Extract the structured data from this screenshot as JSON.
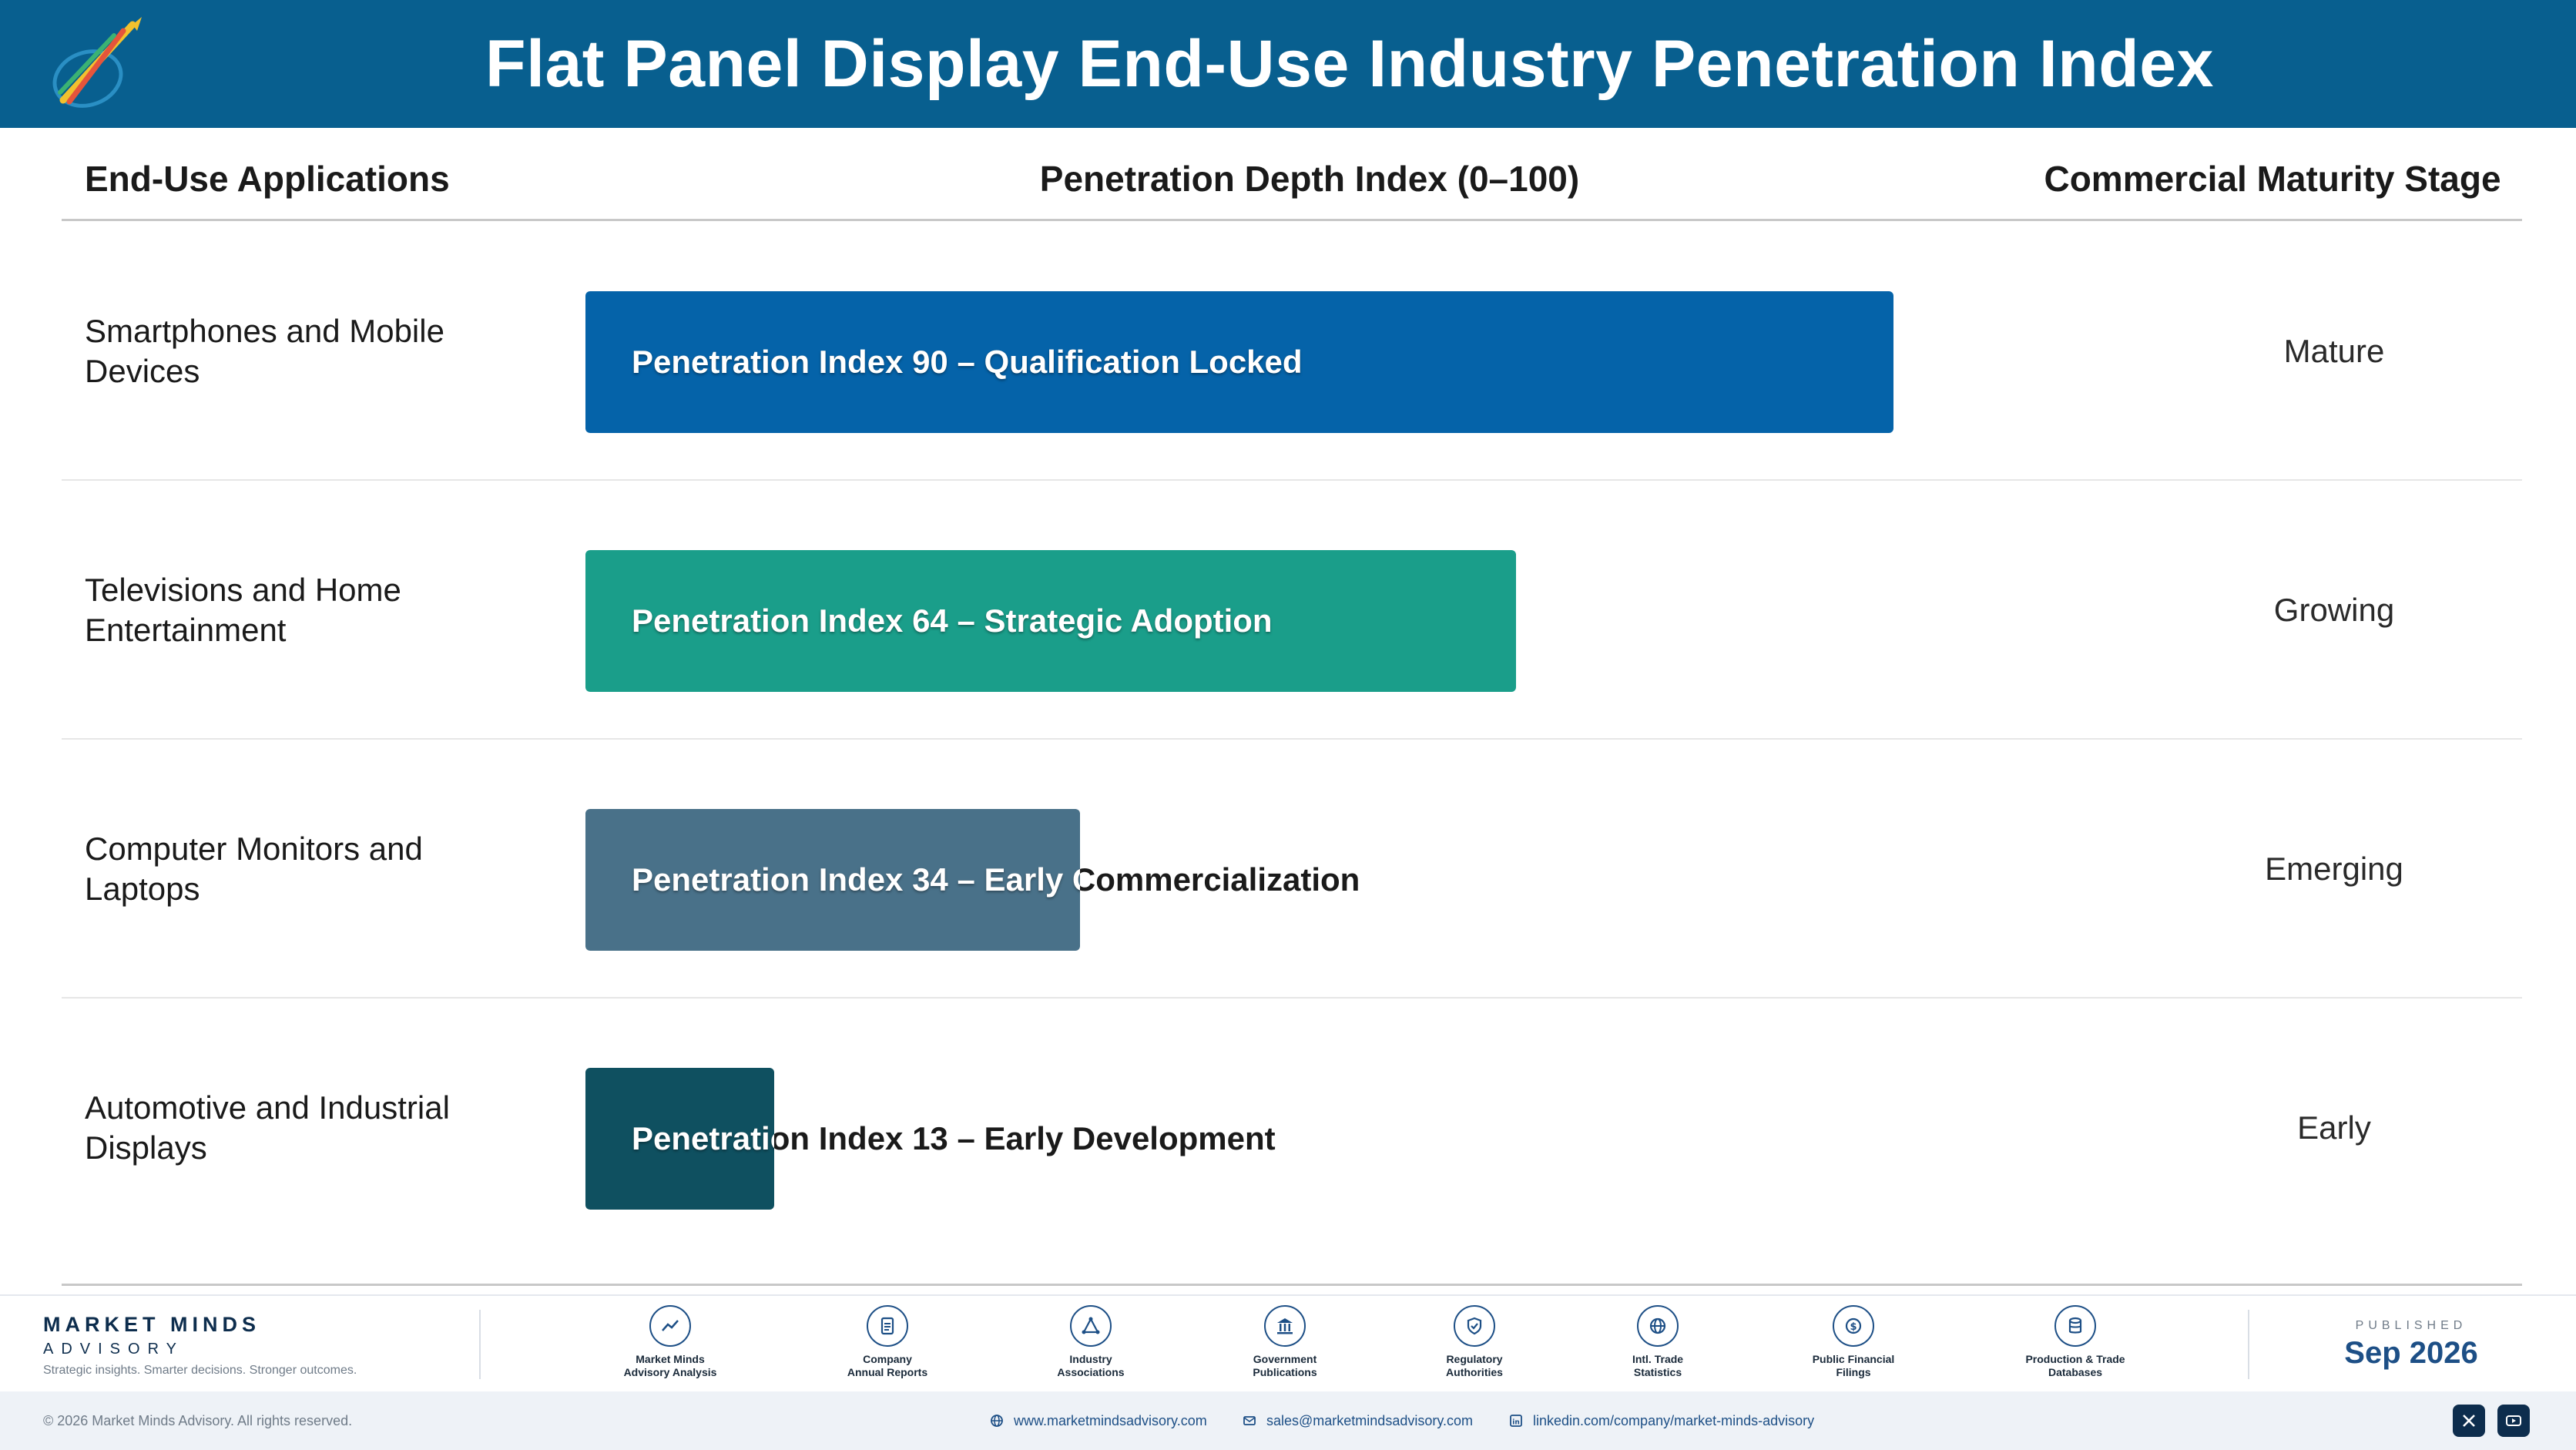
{
  "header": {
    "title": "Flat Panel Display End-Use Industry Penetration Index"
  },
  "columns": {
    "apps": "End-Use Applications",
    "index": "Penetration Depth Index (0–100)",
    "stage": "Commercial Maturity Stage"
  },
  "chart_data": {
    "type": "bar",
    "orientation": "horizontal",
    "xlim": [
      0,
      100
    ],
    "categories": [
      "Smartphones and Mobile Devices",
      "Televisions and Home Entertainment",
      "Computer Monitors and Laptops",
      "Automotive and Industrial Displays"
    ],
    "values": [
      90,
      64,
      34,
      13
    ],
    "bar_labels": [
      "Penetration Index 90 – Qualification Locked",
      "Penetration Index 64 – Strategic Adoption",
      "Penetration Index 34 – Early Commercialization",
      "Penetration Index 13 – Early Development"
    ],
    "stages": [
      "Mature",
      "Growing",
      "Emerging",
      "Early"
    ],
    "colors": [
      "#0563a9",
      "#1a9e8a",
      "#497189",
      "#0f5060"
    ]
  },
  "rows": [
    {
      "label_lines": [
        "Smartphones and Mobile",
        "Devices"
      ]
    },
    {
      "label_lines": [
        "Televisions and Home",
        "Entertainment"
      ]
    },
    {
      "label_lines": [
        "Computer Monitors and",
        "Laptops"
      ]
    },
    {
      "label_lines": [
        "Automotive and Industrial",
        "Displays"
      ]
    }
  ],
  "footer": {
    "brand_name": "MARKET MINDS",
    "brand_sub": "ADVISORY",
    "brand_tag": "Strategic insights. Smarter decisions. Stronger outcomes.",
    "sources": [
      {
        "icon": "chart-trend-icon",
        "lines": [
          "Market Minds",
          "Advisory Analysis"
        ]
      },
      {
        "icon": "document-icon",
        "lines": [
          "Company",
          "Annual Reports"
        ]
      },
      {
        "icon": "network-icon",
        "lines": [
          "Industry",
          "Associations"
        ]
      },
      {
        "icon": "government-building-icon",
        "lines": [
          "Government",
          "Publications"
        ]
      },
      {
        "icon": "shield-check-icon",
        "lines": [
          "Regulatory",
          "Authorities"
        ]
      },
      {
        "icon": "globe-icon",
        "lines": [
          "Intl. Trade",
          "Statistics"
        ]
      },
      {
        "icon": "dollar-coin-icon",
        "lines": [
          "Public Financial",
          "Filings"
        ]
      },
      {
        "icon": "database-icon",
        "lines": [
          "Production & Trade",
          "Databases"
        ]
      }
    ],
    "published_label": "PUBLISHED",
    "published_date": "Sep 2026"
  },
  "bottom": {
    "copyright": "© 2026 Market Minds Advisory. All rights reserved.",
    "website": "www.marketmindsadvisory.com",
    "email": "sales@marketmindsadvisory.com",
    "linkedin": "linkedin.com/company/market-minds-advisory"
  }
}
